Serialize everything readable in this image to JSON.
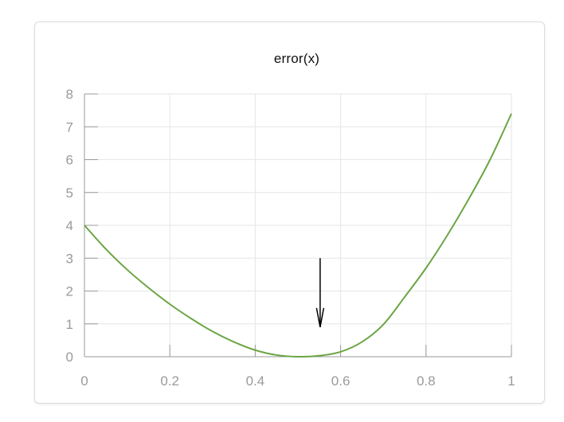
{
  "chart_data": {
    "type": "line",
    "title": "error(x)",
    "xlabel": "",
    "ylabel": "",
    "xlim": [
      0,
      1
    ],
    "ylim": [
      0,
      8
    ],
    "x_ticks": [
      {
        "value": 0,
        "label": "0"
      },
      {
        "value": 0.2,
        "label": "0.2"
      },
      {
        "value": 0.4,
        "label": "0.4"
      },
      {
        "value": 0.6,
        "label": "0.6"
      },
      {
        "value": 0.8,
        "label": "0.8"
      },
      {
        "value": 1,
        "label": "1"
      }
    ],
    "y_ticks": [
      {
        "value": 0,
        "label": "0"
      },
      {
        "value": 1,
        "label": "1"
      },
      {
        "value": 2,
        "label": "2"
      },
      {
        "value": 3,
        "label": "3"
      },
      {
        "value": 4,
        "label": "4"
      },
      {
        "value": 5,
        "label": "5"
      },
      {
        "value": 6,
        "label": "6"
      },
      {
        "value": 7,
        "label": "7"
      },
      {
        "value": 8,
        "label": "8"
      }
    ],
    "grid": true,
    "series": [
      {
        "color": "#6ba544",
        "x": [
          0,
          0.05,
          0.1,
          0.15,
          0.2,
          0.25,
          0.3,
          0.35,
          0.4,
          0.45,
          0.5,
          0.55,
          0.6,
          0.65,
          0.7,
          0.75,
          0.8,
          0.85,
          0.9,
          0.95,
          1.0
        ],
        "y": [
          4.0,
          3.28,
          2.65,
          2.1,
          1.6,
          1.16,
          0.77,
          0.45,
          0.2,
          0.05,
          0.0,
          0.03,
          0.15,
          0.45,
          0.98,
          1.82,
          2.7,
          3.7,
          4.8,
          6.0,
          7.4
        ]
      }
    ],
    "annotations": [
      {
        "type": "arrow",
        "x": 0.552,
        "y_from": 3.0,
        "y_to": 0.9,
        "color": "#000000"
      }
    ]
  }
}
